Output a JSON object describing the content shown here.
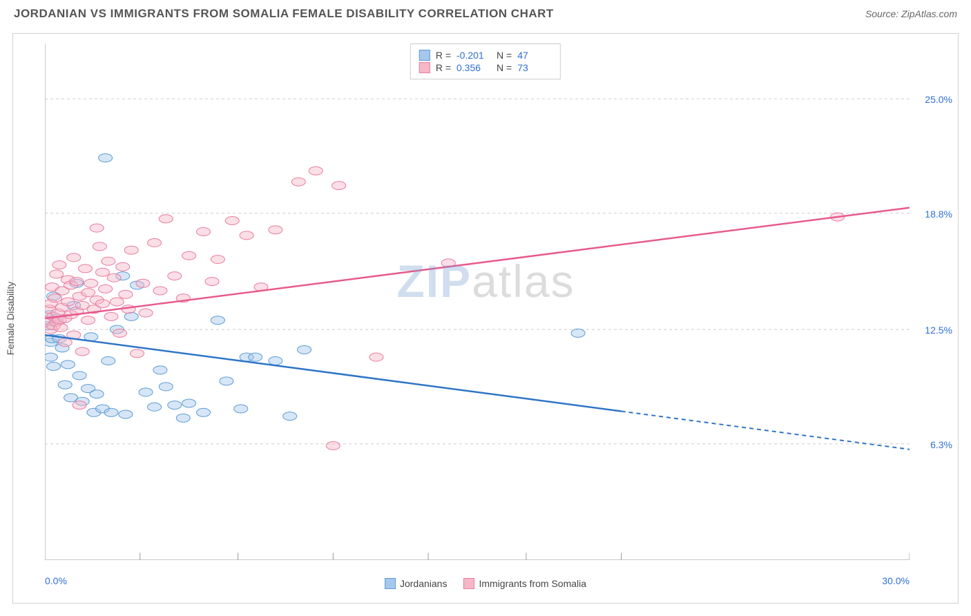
{
  "header": {
    "title": "JORDANIAN VS IMMIGRANTS FROM SOMALIA FEMALE DISABILITY CORRELATION CHART",
    "source_prefix": "Source: ",
    "source": "ZipAtlas.com"
  },
  "ylabel": "Female Disability",
  "watermark": {
    "part1": "ZIP",
    "part2": "atlas"
  },
  "chart": {
    "type": "scatter",
    "xlim": [
      0,
      30
    ],
    "ylim": [
      0,
      28
    ],
    "x_ticks": [
      0,
      3.3,
      6.7,
      10,
      13.3,
      16.7,
      20,
      30
    ],
    "x_labels": {
      "min": "0.0%",
      "max": "30.0%"
    },
    "y_gridlines": [
      {
        "v": 6.3,
        "label": "6.3%"
      },
      {
        "v": 12.5,
        "label": "12.5%"
      },
      {
        "v": 18.8,
        "label": "18.8%"
      },
      {
        "v": 25.0,
        "label": "25.0%"
      }
    ],
    "grid_color": "#cccccc",
    "grid_dash": "4,4",
    "axis_color": "#999999",
    "background": "#ffffff",
    "marker_radius": 8,
    "marker_opacity": 0.45,
    "series": [
      {
        "id": "jordanians",
        "label": "Jordanians",
        "color_fill": "#a6c8ec",
        "color_stroke": "#5b9bd5",
        "line_color": "#2e75c6",
        "R": "-0.201",
        "N": "47",
        "trend": {
          "x1": 0,
          "y1": 12.2,
          "x2": 30,
          "y2": 6.0,
          "dash_after_x": 20
        },
        "points": [
          [
            0.1,
            12.7
          ],
          [
            0.15,
            13.3
          ],
          [
            0.2,
            11.0
          ],
          [
            0.2,
            11.8
          ],
          [
            0.25,
            12.0
          ],
          [
            0.3,
            10.5
          ],
          [
            0.3,
            14.3
          ],
          [
            0.4,
            13.1
          ],
          [
            0.5,
            12.0
          ],
          [
            0.6,
            11.5
          ],
          [
            0.7,
            9.5
          ],
          [
            0.8,
            10.6
          ],
          [
            0.9,
            8.8
          ],
          [
            1.0,
            13.8
          ],
          [
            1.1,
            15.0
          ],
          [
            1.2,
            10.0
          ],
          [
            1.3,
            8.6
          ],
          [
            1.5,
            9.3
          ],
          [
            1.6,
            12.1
          ],
          [
            1.7,
            8.0
          ],
          [
            1.8,
            9.0
          ],
          [
            2.0,
            8.2
          ],
          [
            2.1,
            21.8
          ],
          [
            2.2,
            10.8
          ],
          [
            2.3,
            8.0
          ],
          [
            2.5,
            12.5
          ],
          [
            2.7,
            15.4
          ],
          [
            2.8,
            7.9
          ],
          [
            3.0,
            13.2
          ],
          [
            3.2,
            14.9
          ],
          [
            3.5,
            9.1
          ],
          [
            3.8,
            8.3
          ],
          [
            4.0,
            10.3
          ],
          [
            4.2,
            9.4
          ],
          [
            4.5,
            8.4
          ],
          [
            4.8,
            7.7
          ],
          [
            5.0,
            8.5
          ],
          [
            5.5,
            8.0
          ],
          [
            6.0,
            13.0
          ],
          [
            6.3,
            9.7
          ],
          [
            6.8,
            8.2
          ],
          [
            7.0,
            11.0
          ],
          [
            7.3,
            11.0
          ],
          [
            8.0,
            10.8
          ],
          [
            8.5,
            7.8
          ],
          [
            9.0,
            11.4
          ],
          [
            18.5,
            12.3
          ]
        ]
      },
      {
        "id": "somalia",
        "label": "Immigrants from Somalia",
        "color_fill": "#f6b8c8",
        "color_stroke": "#e87ba0",
        "line_color": "#e75a8d",
        "R": "0.356",
        "N": "73",
        "trend": {
          "x1": 0,
          "y1": 13.1,
          "x2": 30,
          "y2": 19.1,
          "dash_after_x": null
        },
        "points": [
          [
            0.1,
            13.0
          ],
          [
            0.15,
            13.6
          ],
          [
            0.2,
            12.5
          ],
          [
            0.2,
            13.9
          ],
          [
            0.25,
            14.8
          ],
          [
            0.3,
            13.2
          ],
          [
            0.3,
            12.7
          ],
          [
            0.35,
            14.2
          ],
          [
            0.4,
            12.9
          ],
          [
            0.4,
            15.5
          ],
          [
            0.45,
            13.4
          ],
          [
            0.5,
            13.0
          ],
          [
            0.5,
            16.0
          ],
          [
            0.55,
            12.6
          ],
          [
            0.6,
            13.7
          ],
          [
            0.6,
            14.6
          ],
          [
            0.7,
            13.1
          ],
          [
            0.7,
            11.8
          ],
          [
            0.8,
            14.0
          ],
          [
            0.8,
            15.2
          ],
          [
            0.9,
            13.3
          ],
          [
            0.9,
            14.9
          ],
          [
            1.0,
            12.2
          ],
          [
            1.0,
            16.4
          ],
          [
            1.1,
            13.5
          ],
          [
            1.1,
            15.1
          ],
          [
            1.2,
            14.3
          ],
          [
            1.2,
            8.4
          ],
          [
            1.3,
            13.8
          ],
          [
            1.3,
            11.3
          ],
          [
            1.4,
            15.8
          ],
          [
            1.5,
            14.5
          ],
          [
            1.5,
            13.0
          ],
          [
            1.6,
            15.0
          ],
          [
            1.7,
            13.6
          ],
          [
            1.8,
            18.0
          ],
          [
            1.8,
            14.1
          ],
          [
            1.9,
            17.0
          ],
          [
            2.0,
            13.9
          ],
          [
            2.0,
            15.6
          ],
          [
            2.1,
            14.7
          ],
          [
            2.2,
            16.2
          ],
          [
            2.3,
            13.2
          ],
          [
            2.4,
            15.3
          ],
          [
            2.5,
            14.0
          ],
          [
            2.6,
            12.3
          ],
          [
            2.7,
            15.9
          ],
          [
            2.8,
            14.4
          ],
          [
            2.9,
            13.6
          ],
          [
            3.0,
            16.8
          ],
          [
            3.2,
            11.2
          ],
          [
            3.4,
            15.0
          ],
          [
            3.5,
            13.4
          ],
          [
            3.8,
            17.2
          ],
          [
            4.0,
            14.6
          ],
          [
            4.2,
            18.5
          ],
          [
            4.5,
            15.4
          ],
          [
            4.8,
            14.2
          ],
          [
            5.0,
            16.5
          ],
          [
            5.5,
            17.8
          ],
          [
            5.8,
            15.1
          ],
          [
            6.0,
            16.3
          ],
          [
            6.5,
            18.4
          ],
          [
            7.0,
            17.6
          ],
          [
            7.5,
            14.8
          ],
          [
            8.0,
            17.9
          ],
          [
            8.8,
            20.5
          ],
          [
            9.4,
            21.1
          ],
          [
            10.0,
            6.2
          ],
          [
            10.2,
            20.3
          ],
          [
            11.5,
            11.0
          ],
          [
            14.0,
            16.1
          ],
          [
            27.5,
            18.6
          ]
        ]
      }
    ]
  },
  "legend_stat_labels": {
    "R": "R =",
    "N": "N ="
  }
}
